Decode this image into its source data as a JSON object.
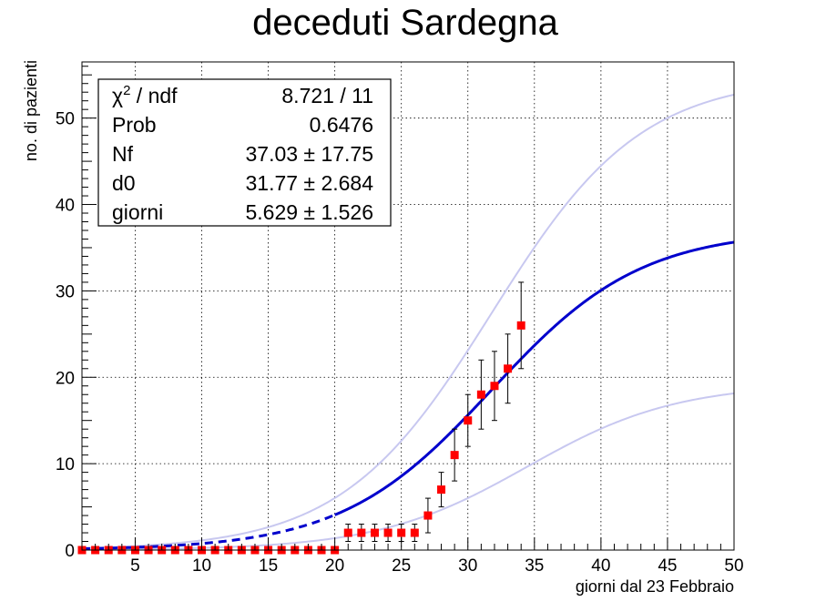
{
  "chart_data": {
    "type": "scatter",
    "title": "deceduti Sardegna",
    "xlabel": "giorni dal 23 Febbraio",
    "ylabel": "no. di pazienti",
    "xlim": [
      1,
      50
    ],
    "ylim": [
      0,
      56.5
    ],
    "grid": true,
    "x_ticks": [
      5,
      10,
      15,
      20,
      25,
      30,
      35,
      40,
      45,
      50
    ],
    "y_ticks": [
      0,
      10,
      20,
      30,
      40,
      50
    ],
    "stats_box": {
      "placement": "top-left",
      "rows": [
        {
          "label": "χ² / ndf",
          "value": "8.721 / 11"
        },
        {
          "label": "Prob",
          "value": "0.6476"
        },
        {
          "label": "Nf",
          "value": "37.03 ± 17.75"
        },
        {
          "label": "d0",
          "value": "31.77 ± 2.684"
        },
        {
          "label": "giorni",
          "value": "5.629 ± 1.526"
        }
      ]
    },
    "fit": {
      "Nf": 37.03,
      "d0": 31.77,
      "giorni": 5.629,
      "fit_range": [
        20,
        34
      ]
    },
    "band_upper": {
      "Nf": 54.78,
      "d0": 31.77,
      "giorni": 5.629
    },
    "band_lower": {
      "Nf": 19.28,
      "d0": 34.45,
      "giorni": 5.629
    },
    "series": [
      {
        "name": "data",
        "points": [
          {
            "x": 1,
            "y": 0
          },
          {
            "x": 2,
            "y": 0
          },
          {
            "x": 3,
            "y": 0
          },
          {
            "x": 4,
            "y": 0
          },
          {
            "x": 5,
            "y": 0
          },
          {
            "x": 6,
            "y": 0
          },
          {
            "x": 7,
            "y": 0
          },
          {
            "x": 8,
            "y": 0
          },
          {
            "x": 9,
            "y": 0
          },
          {
            "x": 10,
            "y": 0
          },
          {
            "x": 11,
            "y": 0
          },
          {
            "x": 12,
            "y": 0
          },
          {
            "x": 13,
            "y": 0
          },
          {
            "x": 14,
            "y": 0
          },
          {
            "x": 15,
            "y": 0
          },
          {
            "x": 16,
            "y": 0
          },
          {
            "x": 17,
            "y": 0
          },
          {
            "x": 18,
            "y": 0
          },
          {
            "x": 19,
            "y": 0
          },
          {
            "x": 20,
            "y": 0
          },
          {
            "x": 21,
            "y": 2,
            "err": 1
          },
          {
            "x": 22,
            "y": 2,
            "err": 1
          },
          {
            "x": 23,
            "y": 2,
            "err": 1
          },
          {
            "x": 24,
            "y": 2,
            "err": 1
          },
          {
            "x": 25,
            "y": 2,
            "err": 1
          },
          {
            "x": 26,
            "y": 2,
            "err": 1
          },
          {
            "x": 27,
            "y": 4,
            "err": 2
          },
          {
            "x": 28,
            "y": 7,
            "err": 2
          },
          {
            "x": 29,
            "y": 11,
            "err": 3
          },
          {
            "x": 30,
            "y": 15,
            "err": 3
          },
          {
            "x": 31,
            "y": 18,
            "err": 4
          },
          {
            "x": 32,
            "y": 19,
            "err": 4
          },
          {
            "x": 33,
            "y": 21,
            "err": 4
          },
          {
            "x": 34,
            "y": 26,
            "err": 5
          }
        ]
      }
    ],
    "colors": {
      "marker": "#ff0000",
      "fit": "#0000cc",
      "band": "#c8c8f0",
      "grid": "#000000",
      "axis": "#000000"
    }
  }
}
